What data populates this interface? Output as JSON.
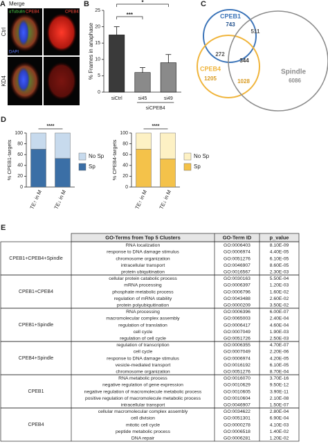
{
  "panel_labels": [
    "A",
    "B",
    "C",
    "D",
    "E"
  ],
  "image_panel": {
    "title": "Merge",
    "row_labels": [
      "Ctrl",
      "KD4"
    ],
    "merge_stain_labels": [
      "αTubulin",
      "CPEB4",
      "DAPI"
    ],
    "single_stain_label": "CPEB4"
  },
  "chart_data": [
    {
      "type": "bar",
      "y_label": "% Frames in anaphase",
      "categories": [
        "siCtrl",
        "si45",
        "si49"
      ],
      "group_label": "siCPEB4",
      "values": [
        17.5,
        6,
        9
      ],
      "errors": [
        2.5,
        1.5,
        2.5
      ],
      "colors": [
        "#3a3a3a",
        "#8a8a8a",
        "#8a8a8a"
      ],
      "ylim": [
        0,
        25
      ],
      "yticks": [
        0,
        5,
        10,
        15,
        20,
        25
      ],
      "annotations": [
        "***",
        "*"
      ]
    },
    {
      "type": "stacked_bar",
      "y_label": "% CPEB1-targets",
      "categories": [
        "TE↑ in M",
        "TE↓ in M"
      ],
      "series": [
        {
          "name": "Sp",
          "color": "#3b6fa6",
          "values": [
            70,
            53
          ]
        },
        {
          "name": "No Sp",
          "color": "#c7daed",
          "values": [
            30,
            47
          ]
        }
      ],
      "ylim": [
        0,
        100
      ],
      "yticks": [
        0,
        20,
        40,
        60,
        80,
        100
      ],
      "annotation": "****"
    },
    {
      "type": "stacked_bar",
      "y_label": "% CPEB4-targets",
      "categories": [
        "TE↑ in M",
        "TE↓ in M"
      ],
      "series": [
        {
          "name": "Sp",
          "color": "#f4c24a",
          "values": [
            70,
            52
          ]
        },
        {
          "name": "No Sp",
          "color": "#fdf1c4",
          "values": [
            30,
            48
          ]
        }
      ],
      "ylim": [
        0,
        100
      ],
      "yticks": [
        0,
        20,
        40,
        60,
        80,
        100
      ],
      "annotation": "****"
    }
  ],
  "venn": {
    "sets": [
      {
        "name": "CPEB1",
        "color": "#3a73b8",
        "count": 743
      },
      {
        "name": "CPEB4",
        "color": "#f0b43a",
        "count": 1205
      },
      {
        "name": "Spindle",
        "color": "#8c8c8c",
        "count": 6086
      }
    ],
    "intersections": {
      "cpeb1_spindle": 511,
      "cpeb1_cpeb4": 272,
      "all": 344,
      "cpeb4_spindle": 1028
    }
  },
  "table": {
    "columns": [
      "GO-Terms from Top 5 Clusters",
      "GO-Term ID",
      "p_value"
    ],
    "groups": [
      {
        "cluster": "CPEB1+CPEB4+Spindle",
        "rows": [
          [
            "RNA localization",
            "GO:0006403",
            "8.10E-09"
          ],
          [
            "response to DNA damage stimulus",
            "GO:0006974",
            "4.40E-05"
          ],
          [
            "chromosome organization",
            "GO:0051276",
            "6.10E-05"
          ],
          [
            "intracellular transport",
            "GO:0046907",
            "8.60E-05"
          ],
          [
            "protein ubiquitination",
            "GO:0016567",
            "2.30E-03"
          ]
        ]
      },
      {
        "cluster": "CPEB1+CPEB4",
        "rows": [
          [
            "cellular protein catabolic process",
            "GO:0030163",
            "5.50E-04"
          ],
          [
            "mRNA processing",
            "GO:0006397",
            "1.20E-03"
          ],
          [
            "phosphate metabolic process",
            "GO:0006796",
            "1.60E-02"
          ],
          [
            "regulation of mRNA stability",
            "GO:0043488",
            "2.60E-02"
          ],
          [
            "protein polyubiquitination",
            "GO:0000209",
            "3.50E-02"
          ]
        ]
      },
      {
        "cluster": "CPEB1+Spindle",
        "rows": [
          [
            "RNA processing",
            "GO:0006396",
            "6.00E-07"
          ],
          [
            "macromolecular complex assembly",
            "GO:0065003",
            "2.40E-04"
          ],
          [
            "regulation of translation",
            "GO:0006417",
            "4.60E-04"
          ],
          [
            "cell cycle",
            "GO:0007049",
            "1.90E-03"
          ],
          [
            "regulation of cell cycle",
            "GO:0051726",
            "2.50E-03"
          ]
        ]
      },
      {
        "cluster": "CPEB4+Spindle",
        "rows": [
          [
            "regulation of transcription",
            "GO:0006355",
            "4.70E-07"
          ],
          [
            "cell cycle",
            "GO:0007049",
            "2.20E-06"
          ],
          [
            "response to DNA damage stimulus",
            "GO:0006974",
            "4.20E-05"
          ],
          [
            "vesicle-mediated transport",
            "GO:0016192",
            "6.10E-05"
          ],
          [
            "chromosome organization",
            "GO:0051276",
            "8.70E-04"
          ]
        ]
      },
      {
        "cluster": "CPEB1",
        "rows": [
          [
            "RNA metabolic process",
            "GO:0016070",
            "3.70E-16"
          ],
          [
            "negative regulation of gene expression",
            "GO:0010629",
            "9.50E-12"
          ],
          [
            "negative regulation of macromolecule metabolic process",
            "GO:0010605",
            "3.90E-11"
          ],
          [
            "positive regulation of macromolecule metabolic process",
            "GO:0010604",
            "2.10E-08"
          ],
          [
            "intracellular transport",
            "GO:0046907",
            "1.50E-07"
          ]
        ]
      },
      {
        "cluster": "CPEB4",
        "rows": [
          [
            "cellular macromolecular complex assembly",
            "GO:0034622",
            "2.80E-04"
          ],
          [
            "cell division",
            "GO:0051301",
            "6.90E-04"
          ],
          [
            "mitotic cell cycle",
            "GO:0000278",
            "4.10E-03"
          ],
          [
            "peptide metabolic process",
            "GO:0006518",
            "1.40E-02"
          ],
          [
            "DNA repair",
            "GO:0006281",
            "1.20E-02"
          ]
        ]
      }
    ]
  }
}
